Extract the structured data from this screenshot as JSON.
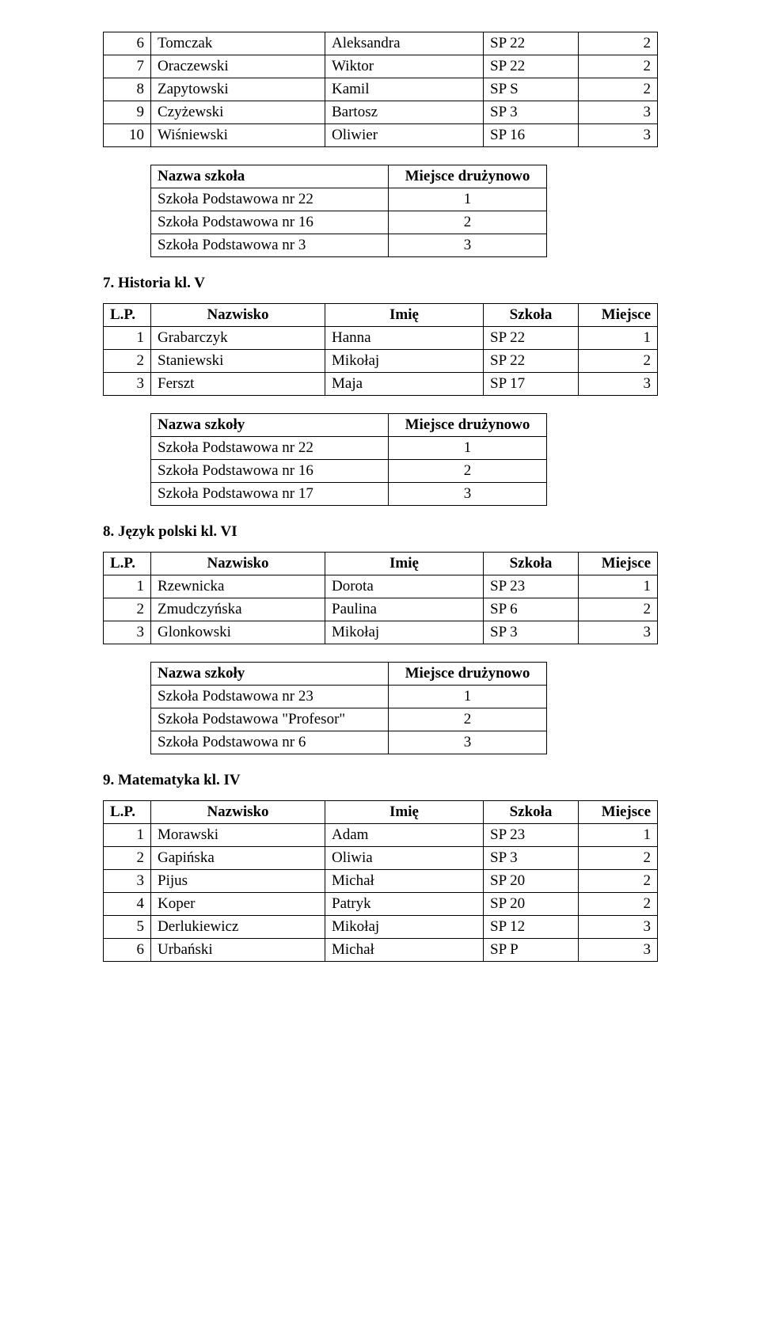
{
  "cont_rows": [
    {
      "n": "6",
      "a": "Tomczak",
      "b": "Aleksandra",
      "c": "SP 22",
      "d": "2"
    },
    {
      "n": "7",
      "a": "Oraczewski",
      "b": "Wiktor",
      "c": "SP 22",
      "d": "2"
    },
    {
      "n": "8",
      "a": "Zapytowski",
      "b": "Kamil",
      "c": "SP S",
      "d": "2"
    },
    {
      "n": "9",
      "a": "Czyżewski",
      "b": "Bartosz",
      "c": "SP 3",
      "d": "3"
    },
    {
      "n": "10",
      "a": "Wiśniewski",
      "b": "Oliwier",
      "c": "SP 16",
      "d": "3"
    }
  ],
  "school1": {
    "h1": "Nazwa szkoła",
    "h2": "Miejsce drużynowo",
    "rows": [
      {
        "a": "Szkoła Podstawowa nr 22",
        "b": "1"
      },
      {
        "a": "Szkoła Podstawowa nr 16",
        "b": "2"
      },
      {
        "a": "Szkoła Podstawowa nr 3",
        "b": "3"
      }
    ]
  },
  "sec7": {
    "title": "7. Historia kl. V",
    "h": {
      "lp": "L.P.",
      "na": "Nazwisko",
      "im": "Imię",
      "sz": "Szkoła",
      "mi": "Miejsce"
    },
    "rows": [
      {
        "n": "1",
        "a": "Grabarczyk",
        "b": "Hanna",
        "c": "SP 22",
        "d": "1"
      },
      {
        "n": "2",
        "a": "Staniewski",
        "b": "Mikołaj",
        "c": "SP 22",
        "d": "2"
      },
      {
        "n": "3",
        "a": "Ferszt",
        "b": "Maja",
        "c": "SP 17",
        "d": "3"
      }
    ],
    "school": {
      "h1": "Nazwa szkoły",
      "h2": "Miejsce drużynowo",
      "rows": [
        {
          "a": "Szkoła Podstawowa nr 22",
          "b": "1"
        },
        {
          "a": "Szkoła Podstawowa nr 16",
          "b": "2"
        },
        {
          "a": "Szkoła Podstawowa nr 17",
          "b": "3"
        }
      ]
    }
  },
  "sec8": {
    "title": "8. Język polski kl. VI",
    "h": {
      "lp": "L.P.",
      "na": "Nazwisko",
      "im": "Imię",
      "sz": "Szkoła",
      "mi": "Miejsce"
    },
    "rows": [
      {
        "n": "1",
        "a": "Rzewnicka",
        "b": "Dorota",
        "c": "SP 23",
        "d": "1"
      },
      {
        "n": "2",
        "a": "Zmudczyńska",
        "b": "Paulina",
        "c": "SP 6",
        "d": "2"
      },
      {
        "n": "3",
        "a": "Glonkowski",
        "b": "Mikołaj",
        "c": "SP 3",
        "d": "3"
      }
    ],
    "school": {
      "h1": "Nazwa szkoły",
      "h2": "Miejsce drużynowo",
      "rows": [
        {
          "a": "Szkoła Podstawowa nr 23",
          "b": "1"
        },
        {
          "a": "Szkoła Podstawowa \"Profesor\"",
          "b": "2"
        },
        {
          "a": "Szkoła Podstawowa nr 6",
          "b": "3"
        }
      ]
    }
  },
  "sec9": {
    "title": "9. Matematyka kl. IV",
    "h": {
      "lp": "L.P.",
      "na": "Nazwisko",
      "im": "Imię",
      "sz": "Szkoła",
      "mi": "Miejsce"
    },
    "rows": [
      {
        "n": "1",
        "a": "Morawski",
        "b": "Adam",
        "c": "SP 23",
        "d": "1"
      },
      {
        "n": "2",
        "a": "Gapińska",
        "b": "Oliwia",
        "c": "SP 3",
        "d": "2"
      },
      {
        "n": "3",
        "a": "Pijus",
        "b": "Michał",
        "c": "SP 20",
        "d": "2"
      },
      {
        "n": "4",
        "a": "Koper",
        "b": "Patryk",
        "c": "SP 20",
        "d": "2"
      },
      {
        "n": "5",
        "a": "Derlukiewicz",
        "b": "Mikołaj",
        "c": "SP 12",
        "d": "3"
      },
      {
        "n": "6",
        "a": "Urbański",
        "b": "Michał",
        "c": "SP P",
        "d": "3"
      }
    ]
  }
}
